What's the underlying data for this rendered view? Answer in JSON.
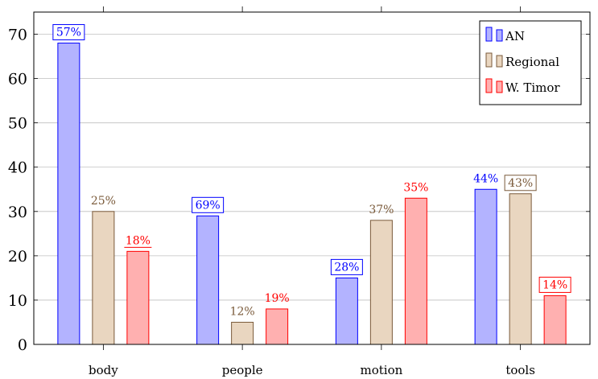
{
  "chart_data": {
    "type": "bar",
    "categories": [
      "body",
      "people",
      "motion",
      "tools"
    ],
    "ylim": [
      0,
      75
    ],
    "yticks": [
      0,
      10,
      20,
      30,
      40,
      50,
      60,
      70
    ],
    "grid": "horizontal",
    "legend_position": "top-right",
    "series": [
      {
        "name": "AN",
        "color": "#0000ff",
        "fill": "#b3b3ff",
        "values": [
          68,
          29,
          15,
          35
        ],
        "labels": [
          "57%",
          "69%",
          "28%",
          "44%"
        ],
        "label_boxed": [
          true,
          true,
          true,
          false
        ]
      },
      {
        "name": "Regional",
        "color": "#7a5a3a",
        "fill": "#e9d6c0",
        "values": [
          30,
          5,
          28,
          34
        ],
        "labels": [
          "25%",
          "12%",
          "37%",
          "43%"
        ],
        "label_boxed": [
          false,
          false,
          false,
          true
        ]
      },
      {
        "name": "W. Timor",
        "color": "#ff0000",
        "fill": "#ffb0b0",
        "values": [
          21,
          8,
          33,
          11
        ],
        "labels": [
          "18%",
          "19%",
          "35%",
          "14%"
        ],
        "label_boxed": [
          false,
          false,
          false,
          true
        ],
        "label_underlined": [
          true,
          false,
          false,
          false
        ]
      }
    ]
  }
}
